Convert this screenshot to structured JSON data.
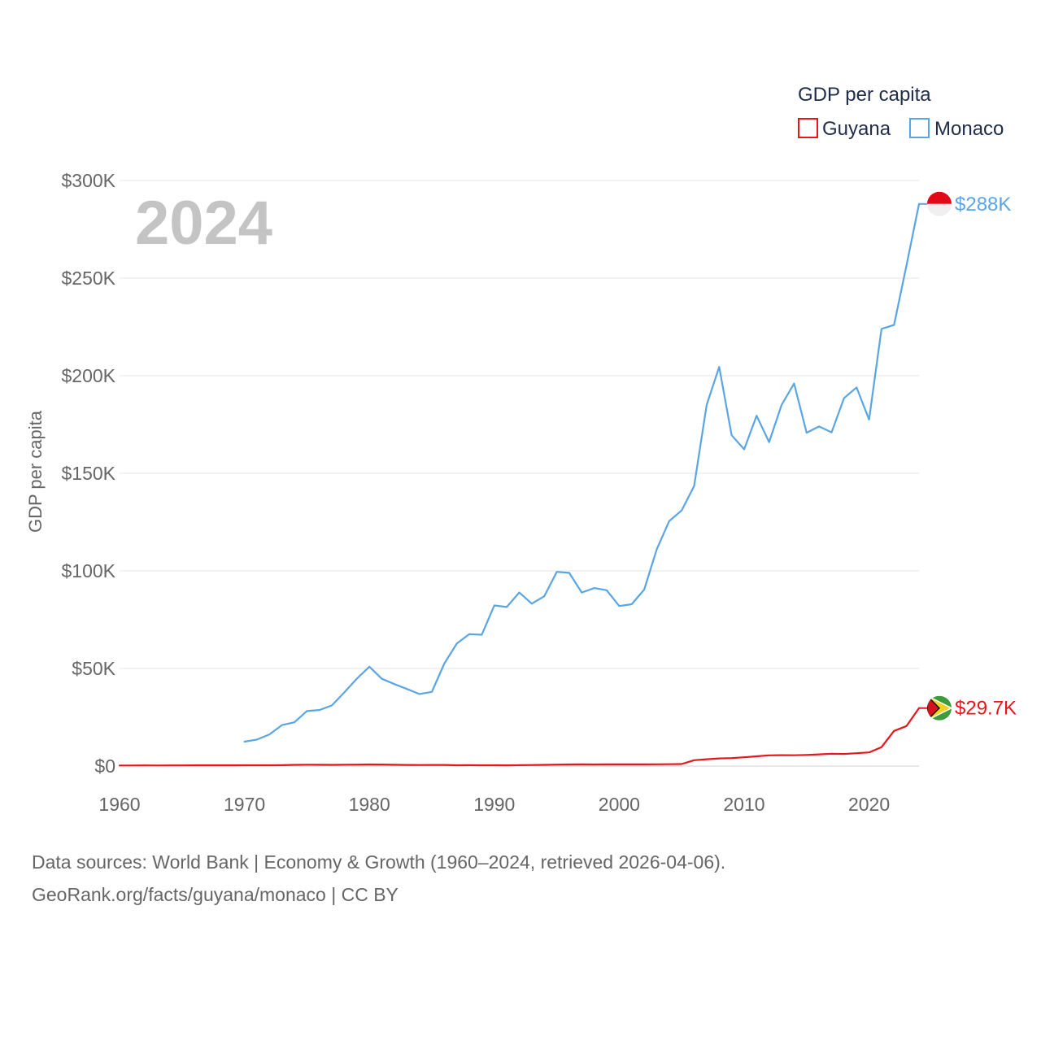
{
  "chart_data": {
    "type": "line",
    "title": "",
    "year_label": "2024",
    "ylabel": "GDP per capita",
    "xlabel": "",
    "xlim": [
      1960,
      2024
    ],
    "ylim": [
      0,
      300000
    ],
    "x_ticks": [
      1960,
      1970,
      1980,
      1990,
      2000,
      2010,
      2020
    ],
    "y_ticks": [
      {
        "value": 0,
        "label": "$0"
      },
      {
        "value": 50000,
        "label": "$50K"
      },
      {
        "value": 100000,
        "label": "$100K"
      },
      {
        "value": 150000,
        "label": "$150K"
      },
      {
        "value": 200000,
        "label": "$200K"
      },
      {
        "value": 250000,
        "label": "$250K"
      },
      {
        "value": 300000,
        "label": "$300K"
      }
    ],
    "grid": true,
    "legend": {
      "title": "GDP per capita",
      "position": "top-right",
      "items": [
        {
          "name": "Guyana",
          "color": "#e8161a"
        },
        {
          "name": "Monaco",
          "color": "#5aa5e4"
        }
      ]
    },
    "series": [
      {
        "name": "Guyana",
        "color": "#e8161a",
        "end_label": "$29.7K",
        "flag": "guyana-flag",
        "points": [
          [
            1960,
            300
          ],
          [
            1961,
            310
          ],
          [
            1962,
            320
          ],
          [
            1963,
            300
          ],
          [
            1964,
            320
          ],
          [
            1965,
            340
          ],
          [
            1966,
            360
          ],
          [
            1967,
            380
          ],
          [
            1968,
            370
          ],
          [
            1969,
            390
          ],
          [
            1970,
            400
          ],
          [
            1971,
            410
          ],
          [
            1972,
            420
          ],
          [
            1973,
            460
          ],
          [
            1974,
            620
          ],
          [
            1975,
            700
          ],
          [
            1976,
            680
          ],
          [
            1977,
            640
          ],
          [
            1978,
            700
          ],
          [
            1979,
            760
          ],
          [
            1980,
            850
          ],
          [
            1981,
            800
          ],
          [
            1982,
            650
          ],
          [
            1983,
            600
          ],
          [
            1984,
            560
          ],
          [
            1985,
            570
          ],
          [
            1986,
            600
          ],
          [
            1987,
            430
          ],
          [
            1988,
            450
          ],
          [
            1989,
            430
          ],
          [
            1990,
            400
          ],
          [
            1991,
            390
          ],
          [
            1992,
            450
          ],
          [
            1993,
            530
          ],
          [
            1994,
            640
          ],
          [
            1995,
            740
          ],
          [
            1996,
            850
          ],
          [
            1997,
            880
          ],
          [
            1998,
            820
          ],
          [
            1999,
            860
          ],
          [
            2000,
            870
          ],
          [
            2001,
            860
          ],
          [
            2002,
            880
          ],
          [
            2003,
            900
          ],
          [
            2004,
            950
          ],
          [
            2005,
            1050
          ],
          [
            2006,
            3000
          ],
          [
            2007,
            3500
          ],
          [
            2008,
            3900
          ],
          [
            2009,
            4100
          ],
          [
            2010,
            4500
          ],
          [
            2011,
            5000
          ],
          [
            2012,
            5500
          ],
          [
            2013,
            5600
          ],
          [
            2014,
            5550
          ],
          [
            2015,
            5700
          ],
          [
            2016,
            6000
          ],
          [
            2017,
            6300
          ],
          [
            2018,
            6200
          ],
          [
            2019,
            6600
          ],
          [
            2020,
            7000
          ],
          [
            2021,
            9700
          ],
          [
            2022,
            18000
          ],
          [
            2023,
            20500
          ],
          [
            2024,
            29700
          ]
        ]
      },
      {
        "name": "Monaco",
        "color": "#5aa5e4",
        "end_label": "$288K",
        "flag": "monaco-flag",
        "points": [
          [
            1970,
            12500
          ],
          [
            1971,
            13600
          ],
          [
            1972,
            16200
          ],
          [
            1973,
            21000
          ],
          [
            1974,
            22400
          ],
          [
            1975,
            28200
          ],
          [
            1976,
            28700
          ],
          [
            1977,
            31100
          ],
          [
            1978,
            37800
          ],
          [
            1979,
            44800
          ],
          [
            1980,
            50900
          ],
          [
            1981,
            44700
          ],
          [
            1982,
            42000
          ],
          [
            1983,
            39500
          ],
          [
            1984,
            36900
          ],
          [
            1985,
            38000
          ],
          [
            1986,
            52500
          ],
          [
            1987,
            62800
          ],
          [
            1988,
            67600
          ],
          [
            1989,
            67300
          ],
          [
            1990,
            82300
          ],
          [
            1991,
            81500
          ],
          [
            1992,
            88900
          ],
          [
            1993,
            83200
          ],
          [
            1994,
            87000
          ],
          [
            1995,
            99500
          ],
          [
            1996,
            99000
          ],
          [
            1997,
            88900
          ],
          [
            1998,
            91200
          ],
          [
            1999,
            90100
          ],
          [
            2000,
            82000
          ],
          [
            2001,
            82900
          ],
          [
            2002,
            90400
          ],
          [
            2003,
            111000
          ],
          [
            2004,
            125500
          ],
          [
            2005,
            131000
          ],
          [
            2006,
            143500
          ],
          [
            2007,
            185000
          ],
          [
            2008,
            204500
          ],
          [
            2009,
            169500
          ],
          [
            2010,
            162300
          ],
          [
            2011,
            179500
          ],
          [
            2012,
            166000
          ],
          [
            2013,
            185000
          ],
          [
            2014,
            196000
          ],
          [
            2015,
            170800
          ],
          [
            2016,
            174000
          ],
          [
            2017,
            171000
          ],
          [
            2018,
            188500
          ],
          [
            2019,
            194000
          ],
          [
            2020,
            177500
          ],
          [
            2021,
            224000
          ],
          [
            2022,
            226000
          ],
          [
            2023,
            256500
          ],
          [
            2024,
            288000
          ]
        ]
      }
    ]
  },
  "footer": {
    "line1": "Data sources: World Bank | Economy & Growth (1960–2024, retrieved 2026-04-06).",
    "line2": "GeoRank.org/facts/guyana/monaco | CC BY"
  }
}
